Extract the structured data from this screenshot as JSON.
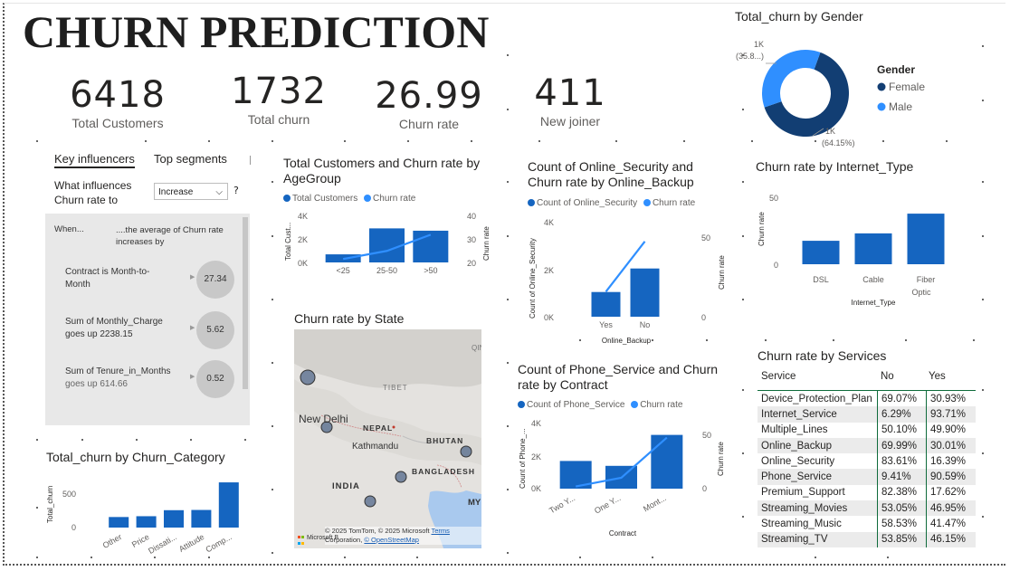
{
  "title": "CHURN PREDICTION",
  "kpis": [
    {
      "value": "6418",
      "label": "Total Customers"
    },
    {
      "value": "1732",
      "label": "Total churn"
    },
    {
      "value": "26.99",
      "label": "Churn rate"
    },
    {
      "value": "411",
      "label": "New joiner"
    }
  ],
  "gender_chart": {
    "title": "Total_churn by Gender",
    "legend_title": "Gender",
    "legend": [
      "Female",
      "Male"
    ],
    "label_male": "1K",
    "label_male_pct": "(35.8...)",
    "label_female": "1K",
    "label_female_pct": "(64.15%)",
    "colors": {
      "female": "#123e73",
      "male": "#2f8fff"
    }
  },
  "key_influencers": {
    "tab_active": "Key influencers",
    "tab_other": "Top segments",
    "question_line1": "What influences",
    "question_line2": "Churn rate to",
    "dropdown_value": "Increase",
    "help": "?",
    "col_when": "When...",
    "col_avg_line1": "....the average of Churn rate",
    "col_avg_line2": "increases by",
    "rows": [
      {
        "line1": "Contract is Month-to-",
        "line2": "Month",
        "value": "27.34"
      },
      {
        "line1": "Sum of Monthly_Charge",
        "line2": "goes up 2238.15",
        "value": "5.62"
      },
      {
        "line1": "Sum of Tenure_in_Months",
        "line2": "goes up 614.66",
        "value": "0.52"
      }
    ]
  },
  "age_chart": {
    "title_line1": "Total Customers and Churn rate by",
    "title_line2": "AgeGroup",
    "legend": [
      "Total Customers",
      "Churn rate"
    ],
    "y_left_label": "Total Cust...",
    "y_right_label": "Churn rate",
    "y_left_ticks": [
      "4K",
      "2K",
      "0K"
    ],
    "y_right_ticks": [
      "40",
      "30",
      "20"
    ]
  },
  "security_chart": {
    "title_line1": "Count of Online_Security and",
    "title_line2": "Churn rate by Online_Backup",
    "legend": [
      "Count of Online_Security",
      "Churn rate"
    ],
    "y_left_label": "Count of Online_Security",
    "y_right_label": "Churn rate",
    "x_label": "Online_Backup",
    "y_left_ticks": [
      "4K",
      "2K",
      "0K"
    ],
    "y_right_ticks": [
      "50",
      "0"
    ]
  },
  "internet_chart": {
    "title": "Churn rate by Internet_Type",
    "y_label": "Churn rate",
    "x_label": "Internet_Type",
    "y_ticks": [
      "50",
      "0"
    ],
    "cat3_line2": "Optic"
  },
  "state_map": {
    "title": "Churn rate by State",
    "places": {
      "delhi": "New Delhi",
      "nepal": "NEPAL",
      "kathmandu": "Kathmandu",
      "bhutan": "BHUTAN",
      "bangladesh": "BANGLADESH",
      "india": "INDIA",
      "tibet": "TIBET",
      "my": "MY",
      "qin": "QIN"
    },
    "attribution_line1": "© 2025 TomTom, © 2025 Microsoft",
    "attribution_terms": "Terms",
    "attribution_line2": "Corporation,",
    "attribution_osm": "© OpenStreetMap",
    "logo_text": "Microsoft B"
  },
  "phone_chart": {
    "title_line1": "Count of Phone_Service and Churn",
    "title_line2": "rate by Contract",
    "legend": [
      "Count of Phone_Service",
      "Churn rate"
    ],
    "y_left_label": "Count of Phone_...",
    "y_right_label": "Churn rate",
    "x_label": "Contract",
    "y_left_ticks": [
      "4K",
      "2K",
      "0K"
    ],
    "y_right_ticks": [
      "50",
      "0"
    ]
  },
  "category_chart": {
    "title": "Total_churn by Churn_Category",
    "y_label": "Total_churn",
    "y_ticks": [
      "500",
      "0"
    ]
  },
  "services_table": {
    "title": "Churn rate by Services",
    "headers": [
      "Service",
      "No",
      "Yes"
    ],
    "rows": [
      [
        "Device_Protection_Plan",
        "69.07%",
        "30.93%"
      ],
      [
        "Internet_Service",
        "6.29%",
        "93.71%"
      ],
      [
        "Multiple_Lines",
        "50.10%",
        "49.90%"
      ],
      [
        "Online_Backup",
        "69.99%",
        "30.01%"
      ],
      [
        "Online_Security",
        "83.61%",
        "16.39%"
      ],
      [
        "Phone_Service",
        "9.41%",
        "90.59%"
      ],
      [
        "Premium_Support",
        "82.38%",
        "17.62%"
      ],
      [
        "Streaming_Movies",
        "53.05%",
        "46.95%"
      ],
      [
        "Streaming_Music",
        "58.53%",
        "41.47%"
      ],
      [
        "Streaming_TV",
        "53.85%",
        "46.15%"
      ]
    ]
  },
  "chart_data": [
    {
      "type": "bar",
      "categories": [
        "<25",
        "25-50",
        ">50"
      ],
      "series": [
        {
          "name": "Total Customers",
          "values": [
            700,
            2950,
            2750
          ]
        },
        {
          "name": "Churn rate",
          "values": [
            21.5,
            25,
            32
          ]
        }
      ],
      "ylim": [
        0,
        4000
      ],
      "ylim_right": [
        20,
        40
      ],
      "ylabel": "Total Cust...",
      "ylabel_right": "Churn rate"
    },
    {
      "type": "bar",
      "categories": [
        "Yes",
        "No"
      ],
      "series": [
        {
          "name": "Count of Online_Security",
          "values": [
            1050,
            2050
          ]
        },
        {
          "name": "Churn rate",
          "values": [
            16,
            48
          ]
        }
      ],
      "ylim": [
        0,
        4000
      ],
      "ylim_right": [
        0,
        60
      ],
      "xlabel": "Online_Backup",
      "ylabel": "Count of Online_Security",
      "ylabel_right": "Churn rate"
    },
    {
      "type": "bar",
      "categories": [
        "DSL",
        "Cable",
        "Fiber"
      ],
      "values": [
        19,
        25,
        41
      ],
      "ylim": [
        0,
        55
      ],
      "xlabel": "Internet_Type",
      "ylabel": "Churn rate"
    },
    {
      "type": "bar",
      "categories": [
        "Two Y...",
        "One Y...",
        "Mont..."
      ],
      "series": [
        {
          "name": "Count of Phone_Service",
          "values": [
            1700,
            1400,
            3300
          ]
        },
        {
          "name": "Churn rate",
          "values": [
            2,
            10,
            47
          ]
        }
      ],
      "ylim": [
        0,
        4000
      ],
      "ylim_right": [
        0,
        60
      ],
      "xlabel": "Contract",
      "ylabel": "Count of Phone_...",
      "ylabel_right": "Churn rate"
    },
    {
      "type": "bar",
      "categories": [
        "Other",
        "Price",
        "Dissati...",
        "Attitude",
        "Comp..."
      ],
      "values": [
        182,
        196,
        300,
        304,
        780
      ],
      "ylim": [
        0,
        900
      ],
      "ylabel": "Total_churn"
    },
    {
      "type": "pie",
      "categories": [
        "Female",
        "Male"
      ],
      "values": [
        64.15,
        35.85
      ],
      "title": "Total_churn by Gender"
    }
  ]
}
